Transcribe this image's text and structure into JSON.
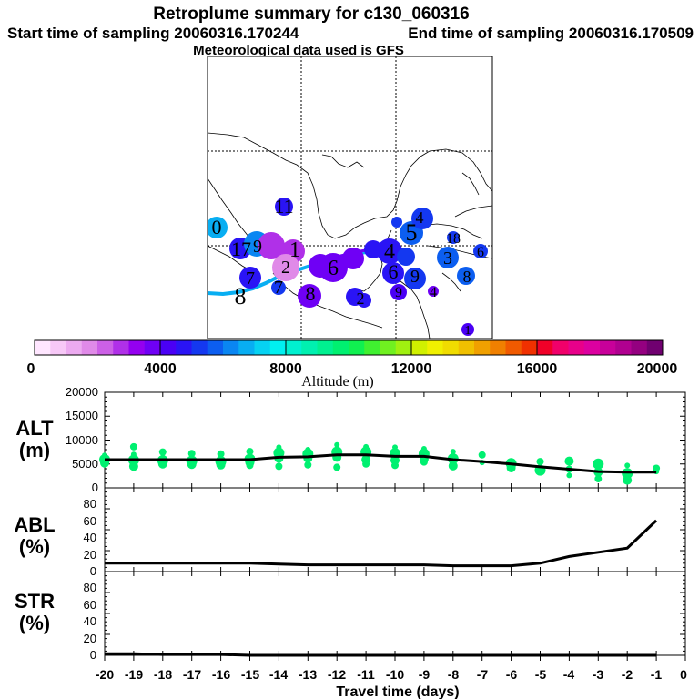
{
  "header": {
    "title": "Retroplume summary for c130_060316",
    "start": "Start time of sampling 20060316.170244",
    "end": "End time of sampling 20060316.170509",
    "met": "Meteorological data used is GFS"
  },
  "colorbar": {
    "ticks": [
      "0",
      "4000",
      "8000",
      "12000",
      "16000",
      "20000"
    ],
    "label": "Altitude (m)",
    "colors": [
      "#ffe6ff",
      "#f7c8f7",
      "#ecaaf0",
      "#e08ae8",
      "#cc60e6",
      "#b030e8",
      "#9400f0",
      "#6f00f5",
      "#4a00f5",
      "#2a14f5",
      "#1438f0",
      "#0c5ef0",
      "#0a86f2",
      "#08aef2",
      "#06d2f2",
      "#00f0f0",
      "#00f0d0",
      "#00f0b0",
      "#00f090",
      "#00f070",
      "#10f050",
      "#40f030",
      "#70f020",
      "#a0f010",
      "#d0f000",
      "#f0f000",
      "#f0dc00",
      "#f0c000",
      "#f0a000",
      "#f08000",
      "#f05a00",
      "#f03000",
      "#f00028",
      "#f0006a",
      "#e8008a",
      "#dc00a0",
      "#c8009a",
      "#b00090",
      "#940080",
      "#700070"
    ]
  },
  "map": {
    "labels": [
      {
        "text": "0",
        "color": "#08aef2"
      },
      {
        "text": "11",
        "color": "#2a14f5"
      },
      {
        "text": "17",
        "color": "#2a14f5"
      },
      {
        "text": "9",
        "color": "#0a86f2"
      },
      {
        "text": "1",
        "color": "#b030e8"
      },
      {
        "text": "7",
        "color": "#2a14f5"
      },
      {
        "text": "2",
        "color": "#e08ae8"
      },
      {
        "text": "7",
        "color": "#1438f0"
      },
      {
        "text": "8",
        "color": "#6f00f5"
      },
      {
        "text": "8",
        "color": "#0a86f2"
      },
      {
        "text": "6",
        "color": "#6f00f5"
      },
      {
        "text": "5",
        "color": "#0c5ef0"
      },
      {
        "text": "4",
        "color": "#1438f0"
      },
      {
        "text": "4",
        "color": "#2a14f5"
      },
      {
        "text": "6",
        "color": "#2a14f5"
      },
      {
        "text": "9",
        "color": "#1438f0"
      },
      {
        "text": "18",
        "color": "#1438f0"
      },
      {
        "text": "3",
        "color": "#0c5ef0"
      },
      {
        "text": "6",
        "color": "#1438f0"
      },
      {
        "text": "8",
        "color": "#0c5ef0"
      },
      {
        "text": "2",
        "color": "#2a14f5"
      },
      {
        "text": "9",
        "color": "#4a00f5"
      },
      {
        "text": "4",
        "color": "#6f00f5"
      },
      {
        "text": "1",
        "color": "#4a00f5"
      }
    ]
  },
  "chart_data": [
    {
      "type": "scatter",
      "name": "ALT",
      "ylabel": "ALT (m)",
      "ylabel_lines": [
        "ALT",
        "(m)"
      ],
      "ylim": [
        0,
        20000
      ],
      "yticks": [
        "0",
        "5000",
        "10000",
        "15000",
        "20000"
      ],
      "xlim": [
        -20,
        0
      ],
      "line": {
        "x": [
          -20,
          -19,
          -18,
          -17,
          -16,
          -15,
          -14,
          -13,
          -12,
          -11,
          -10,
          -9,
          -8,
          -7,
          -6,
          -5,
          -4,
          -3,
          -2,
          -1
        ],
        "y": [
          5900,
          5900,
          5900,
          5900,
          5900,
          5900,
          6400,
          6500,
          6900,
          6900,
          6600,
          6600,
          5900,
          5500,
          5000,
          4400,
          3900,
          3400,
          3300,
          3300
        ]
      },
      "points": {
        "x": [
          -20,
          -20,
          -20,
          -19,
          -19,
          -19,
          -19,
          -18,
          -18,
          -18,
          -18,
          -17,
          -17,
          -17,
          -17,
          -16,
          -16,
          -16,
          -16,
          -15,
          -15,
          -15,
          -15,
          -15,
          -14,
          -14,
          -14,
          -14,
          -13,
          -13,
          -13,
          -13,
          -12,
          -12,
          -12,
          -12,
          -11,
          -11,
          -11,
          -11,
          -10,
          -10,
          -10,
          -10,
          -9,
          -9,
          -9,
          -9,
          -8,
          -8,
          -8,
          -7,
          -7,
          -6,
          -6,
          -5,
          -5,
          -5,
          -4,
          -4,
          -4,
          -3,
          -3,
          -3,
          -2,
          -2,
          -2,
          -1,
          -1
        ],
        "y": [
          6800,
          5900,
          5200,
          8600,
          7000,
          5800,
          4500,
          7500,
          6400,
          5700,
          5000,
          7200,
          6400,
          5600,
          4900,
          7100,
          6300,
          5500,
          4800,
          7600,
          6600,
          6000,
          5300,
          4700,
          8500,
          7300,
          6200,
          4500,
          8000,
          7100,
          6200,
          4800,
          9000,
          7500,
          6400,
          4300,
          8600,
          7500,
          5900,
          5000,
          8500,
          7200,
          5800,
          4700,
          8200,
          7100,
          6000,
          5400,
          7600,
          6100,
          4600,
          6900,
          5300,
          5100,
          4200,
          5500,
          4400,
          3700,
          5600,
          3900,
          2600,
          5000,
          3300,
          1900,
          4700,
          3000,
          1600,
          4100,
          3400
        ]
      },
      "point_color": "#00f070"
    },
    {
      "type": "line",
      "name": "ABL",
      "ylabel": "ABL (%)",
      "ylabel_lines": [
        "ABL",
        "(%)"
      ],
      "ylim": [
        0,
        100
      ],
      "yticks": [
        "0",
        "20",
        "40",
        "60",
        "80"
      ],
      "xlim": [
        -20,
        0
      ],
      "x": [
        -20,
        -19,
        -18,
        -17,
        -16,
        -15,
        -14,
        -13,
        -12,
        -11,
        -10,
        -9,
        -8,
        -7,
        -6,
        -5,
        -4,
        -3,
        -2,
        -1
      ],
      "y": [
        10,
        10,
        10,
        10,
        10,
        10,
        9,
        8,
        8,
        8,
        8,
        8,
        7,
        7,
        7,
        10,
        18,
        23,
        28,
        61
      ]
    },
    {
      "type": "line",
      "name": "STR",
      "ylabel": "STR (%)",
      "ylabel_lines": [
        "STR",
        "(%)"
      ],
      "ylim": [
        0,
        100
      ],
      "yticks": [
        "0",
        "20",
        "40",
        "60",
        "80"
      ],
      "xlim": [
        -20,
        0
      ],
      "x": [
        -20,
        -19,
        -18,
        -17,
        -16,
        -15,
        -14,
        -13,
        -12,
        -11,
        -10,
        -9,
        -8,
        -7,
        -6,
        -5,
        -4,
        -3,
        -2,
        -1
      ],
      "y": [
        2,
        2,
        1,
        1,
        1,
        0,
        0,
        0,
        0,
        0,
        0,
        0,
        0,
        0,
        0,
        0,
        0,
        0,
        0,
        0
      ]
    }
  ],
  "xaxis": {
    "ticks": [
      "-20",
      "-19",
      "-18",
      "-17",
      "-16",
      "-15",
      "-14",
      "-13",
      "-12",
      "-11",
      "-10",
      "-9",
      "-8",
      "-7",
      "-6",
      "-5",
      "-4",
      "-3",
      "-2",
      "-1",
      "0"
    ],
    "label": "Travel time (days)"
  }
}
